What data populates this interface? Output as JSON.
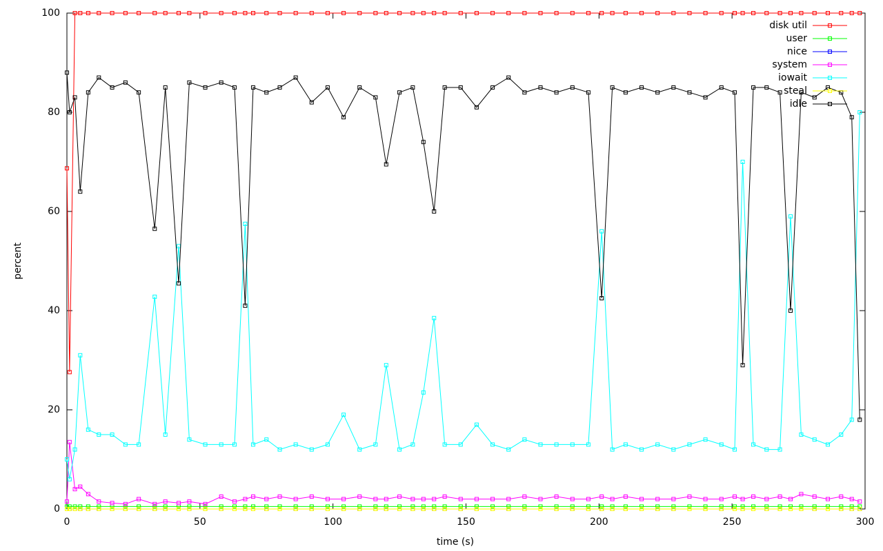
{
  "chart_data": {
    "type": "line",
    "x_label": "time (s)",
    "y_label": "percent",
    "xlim": [
      0,
      300
    ],
    "ylim": [
      0,
      100
    ],
    "xticks": [
      0,
      50,
      100,
      150,
      200,
      250,
      300
    ],
    "yticks": [
      0,
      20,
      40,
      60,
      80,
      100
    ],
    "legend": "top-right",
    "grid": false,
    "markers": true,
    "x": [
      0,
      1,
      3,
      5,
      8,
      12,
      17,
      22,
      27,
      33,
      37,
      42,
      46,
      52,
      58,
      63,
      67,
      70,
      75,
      80,
      86,
      92,
      98,
      104,
      110,
      116,
      120,
      125,
      130,
      134,
      138,
      142,
      148,
      154,
      160,
      166,
      172,
      178,
      184,
      190,
      196,
      201,
      205,
      210,
      216,
      222,
      228,
      234,
      240,
      246,
      251,
      254,
      258,
      263,
      268,
      272,
      276,
      281,
      286,
      291,
      295,
      298
    ],
    "series": [
      {
        "name": "disk util",
        "color": "#ff0000",
        "values": [
          68.7,
          27.6,
          100,
          100,
          100,
          100,
          100,
          100,
          100,
          100,
          100,
          100,
          100,
          100,
          100,
          100,
          100,
          100,
          100,
          100,
          100,
          100,
          100,
          100,
          100,
          100,
          100,
          100,
          100,
          100,
          100,
          100,
          100,
          100,
          100,
          100,
          100,
          100,
          100,
          100,
          100,
          100,
          100,
          100,
          100,
          100,
          100,
          100,
          100,
          100,
          100,
          100,
          100,
          100,
          100,
          100,
          100,
          100,
          100,
          100,
          100,
          100
        ]
      },
      {
        "name": "user",
        "color": "#00ff00",
        "values": [
          0.5,
          0.5,
          0.5,
          0.5,
          0.5,
          0.5,
          0.5,
          0.5,
          0.5,
          0.5,
          0.5,
          0.5,
          0.5,
          0.5,
          0.5,
          0.5,
          0.5,
          0.5,
          0.5,
          0.5,
          0.5,
          0.5,
          0.5,
          0.5,
          0.5,
          0.5,
          0.5,
          0.5,
          0.5,
          0.5,
          0.5,
          0.5,
          0.5,
          0.5,
          0.5,
          0.5,
          0.5,
          0.5,
          0.5,
          0.5,
          0.5,
          0.5,
          0.5,
          0.5,
          0.5,
          0.5,
          0.5,
          0.5,
          0.5,
          0.5,
          0.5,
          0.5,
          0.5,
          0.5,
          0.5,
          0.5,
          0.5,
          0.5,
          0.5,
          0.5,
          0.5,
          0.5
        ]
      },
      {
        "name": "nice",
        "color": "#0000ff",
        "values": [
          0,
          0,
          0,
          0,
          0,
          0,
          0,
          0,
          0,
          0,
          0,
          0,
          0,
          0,
          0,
          0,
          0,
          0,
          0,
          0,
          0,
          0,
          0,
          0,
          0,
          0,
          0,
          0,
          0,
          0,
          0,
          0,
          0,
          0,
          0,
          0,
          0,
          0,
          0,
          0,
          0,
          0,
          0,
          0,
          0,
          0,
          0,
          0,
          0,
          0,
          0,
          0,
          0,
          0,
          0,
          0,
          0,
          0,
          0,
          0,
          0,
          0
        ]
      },
      {
        "name": "system",
        "color": "#ff00ff",
        "values": [
          1.5,
          13.5,
          4,
          4.5,
          3,
          1.5,
          1.2,
          1,
          2,
          1,
          1.5,
          1.2,
          1.5,
          1,
          2.5,
          1.5,
          2,
          2.5,
          2,
          2.5,
          2,
          2.5,
          2,
          2,
          2.5,
          2,
          2,
          2.5,
          2,
          2,
          2,
          2.5,
          2,
          2,
          2,
          2,
          2.5,
          2,
          2.5,
          2,
          2,
          2.5,
          2,
          2.5,
          2,
          2,
          2,
          2.5,
          2,
          2,
          2.5,
          2,
          2.5,
          2,
          2.5,
          2,
          3,
          2.5,
          2,
          2.5,
          2,
          1.5
        ]
      },
      {
        "name": "iowait",
        "color": "#00ffff",
        "values": [
          10,
          6,
          12,
          31,
          16,
          15,
          15,
          13,
          13,
          42.8,
          15,
          53,
          14,
          13,
          13,
          13,
          57.5,
          13,
          14,
          12,
          13,
          12,
          13,
          19,
          12,
          13,
          29,
          12,
          13,
          23.5,
          38.5,
          13,
          13,
          17,
          13,
          12,
          14,
          13,
          13,
          13,
          13,
          56,
          12,
          13,
          12,
          13,
          12,
          13,
          14,
          13,
          12,
          70,
          13,
          12,
          12,
          59,
          15,
          14,
          13,
          15,
          18,
          80
        ]
      },
      {
        "name": "steal",
        "color": "#ffff00",
        "values": [
          0,
          0,
          0,
          0,
          0,
          0,
          0,
          0,
          0,
          0,
          0,
          0,
          0,
          0,
          0,
          0,
          0,
          0,
          0,
          0,
          0,
          0,
          0,
          0,
          0,
          0,
          0,
          0,
          0,
          0,
          0,
          0,
          0,
          0,
          0,
          0,
          0,
          0,
          0,
          0,
          0,
          0,
          0,
          0,
          0,
          0,
          0,
          0,
          0,
          0,
          0,
          0,
          0,
          0,
          0,
          0,
          0,
          0,
          0,
          0,
          0,
          0
        ]
      },
      {
        "name": "idle",
        "color": "#000000",
        "values": [
          88,
          80,
          83,
          64,
          84,
          87,
          85,
          86,
          84,
          56.5,
          85,
          45.5,
          86,
          85,
          86,
          85,
          41,
          85,
          84,
          85,
          87,
          82,
          85,
          79,
          85,
          83,
          69.5,
          84,
          85,
          74,
          60,
          85,
          85,
          81,
          85,
          87,
          84,
          85,
          84,
          85,
          84,
          42.5,
          85,
          84,
          85,
          84,
          85,
          84,
          83,
          85,
          84,
          29,
          85,
          85,
          84,
          40,
          84,
          83,
          85,
          84,
          79,
          18
        ]
      }
    ]
  }
}
